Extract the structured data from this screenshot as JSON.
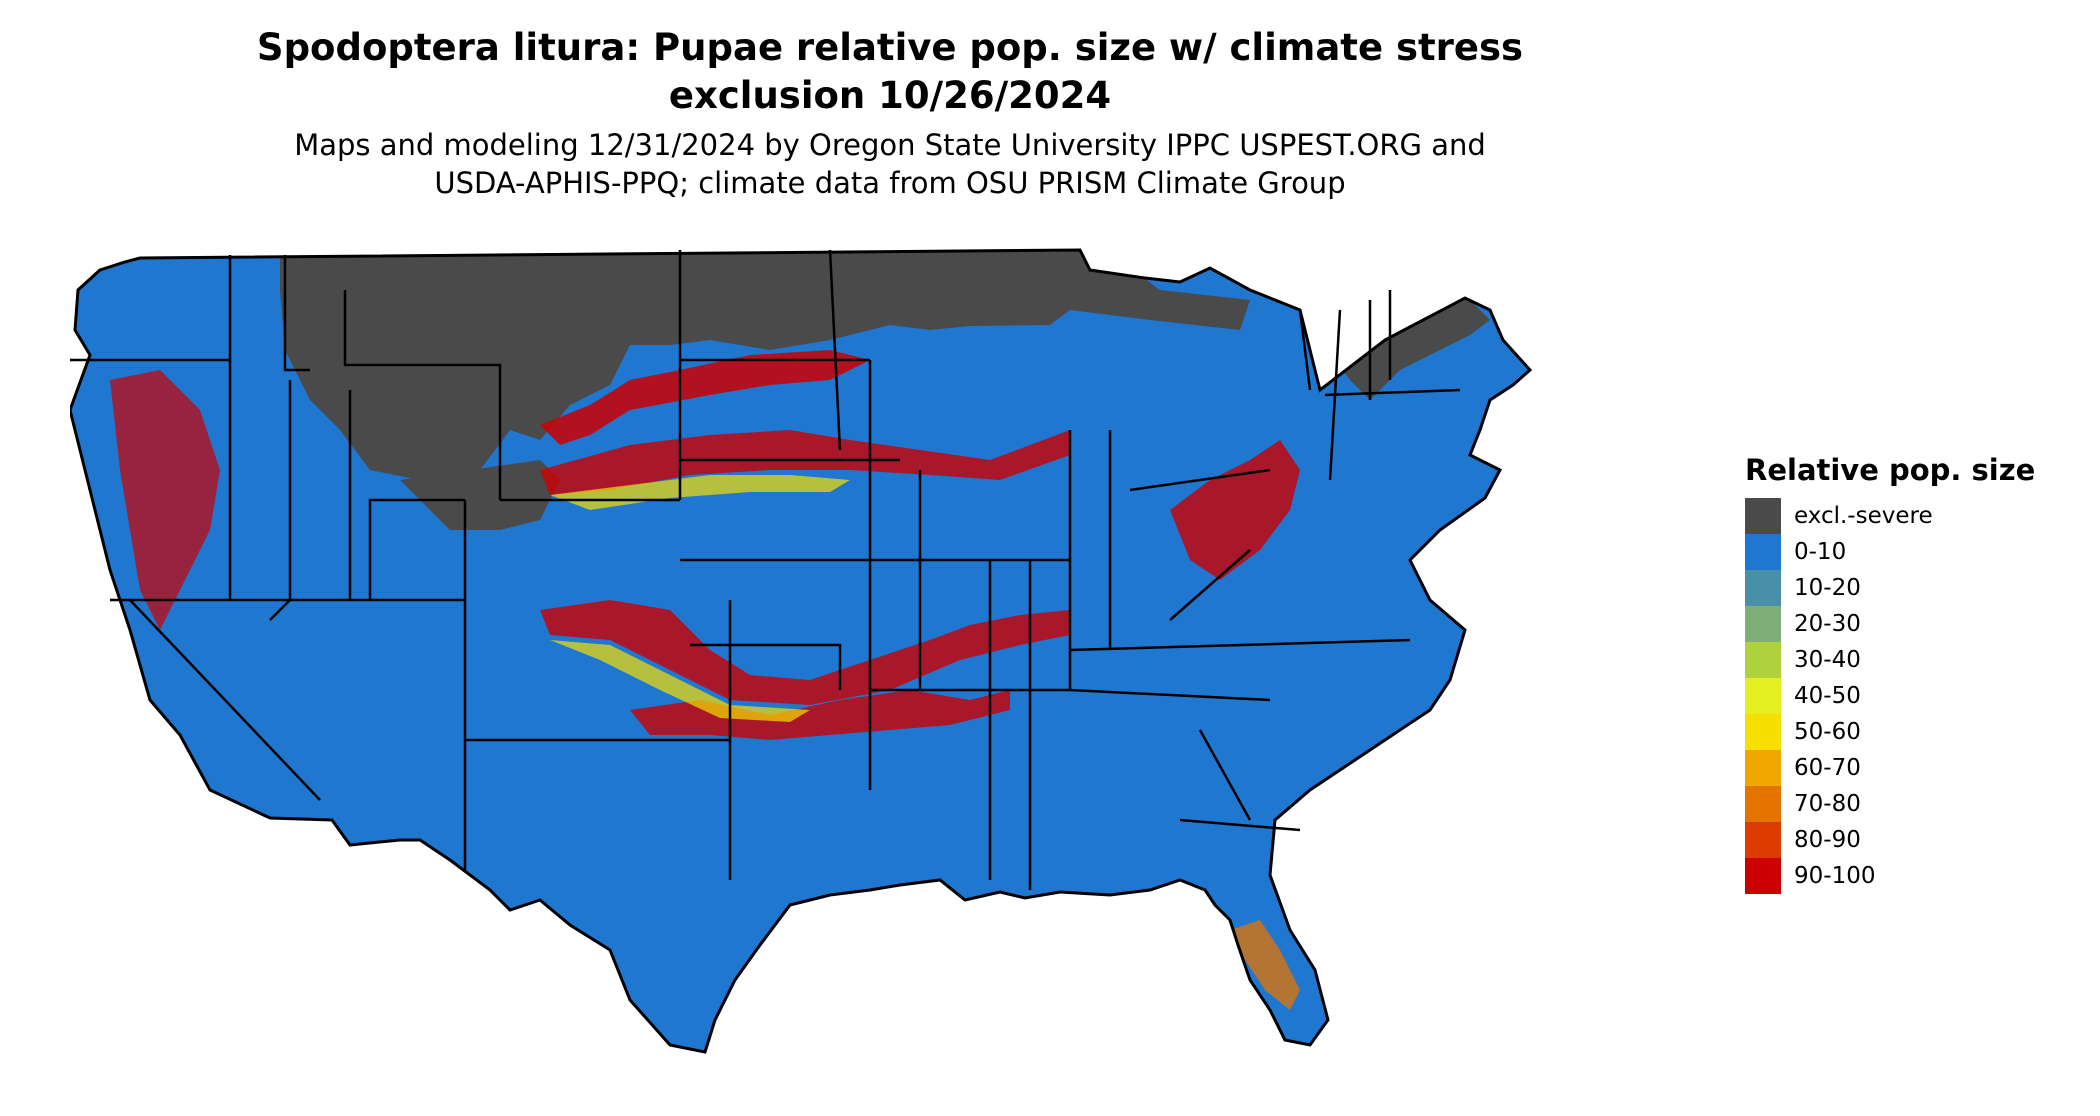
{
  "title_line1": "Spodoptera litura: Pupae relative pop. size w/ climate stress",
  "title_line2": "exclusion 10/26/2024",
  "subtitle_line1": "Maps and modeling 12/31/2024 by Oregon State University IPPC USPEST.ORG and",
  "subtitle_line2": "USDA-APHIS-PPQ; climate data from OSU PRISM Climate Group",
  "legend": {
    "title": "Relative pop. size",
    "items": [
      {
        "label": "excl.-severe",
        "color": "#4a4a4a"
      },
      {
        "label": "0-10",
        "color": "#1f77d0"
      },
      {
        "label": "10-20",
        "color": "#4a8fa8"
      },
      {
        "label": "20-30",
        "color": "#7fae76"
      },
      {
        "label": "30-40",
        "color": "#b0d13e"
      },
      {
        "label": "40-50",
        "color": "#e3ef1e"
      },
      {
        "label": "50-60",
        "color": "#f7e000"
      },
      {
        "label": "60-70",
        "color": "#f0a800"
      },
      {
        "label": "70-80",
        "color": "#e57300"
      },
      {
        "label": "80-90",
        "color": "#dc3b00"
      },
      {
        "label": "90-100",
        "color": "#cc0000"
      }
    ]
  }
}
